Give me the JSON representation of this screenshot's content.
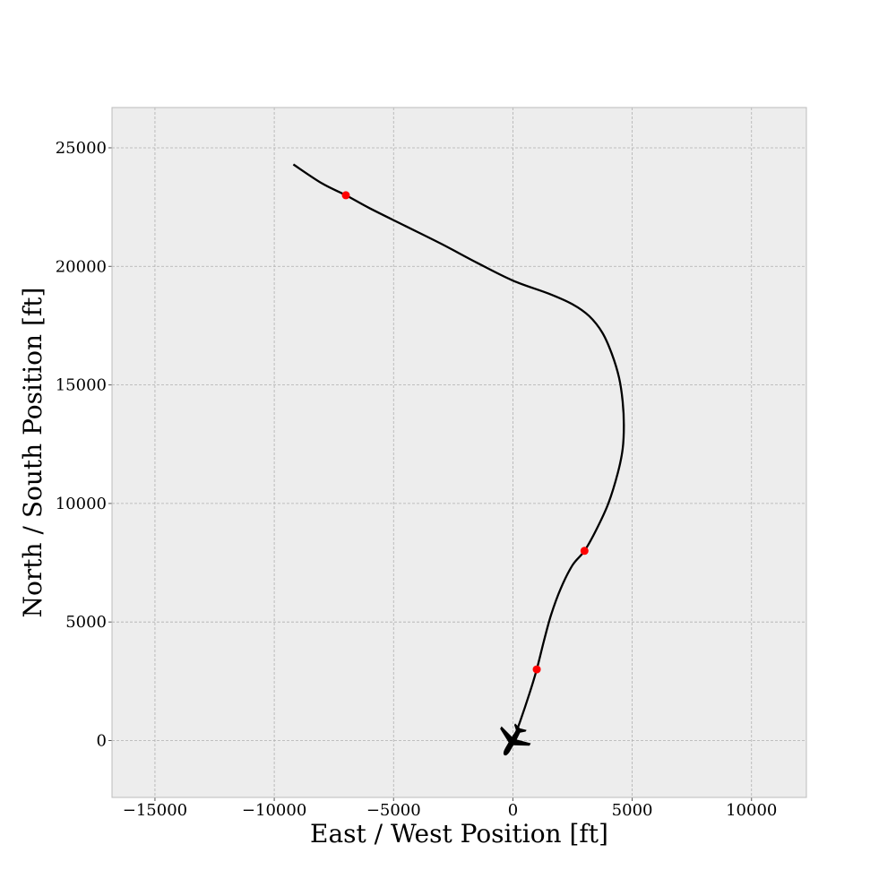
{
  "chart_data": {
    "type": "line",
    "title": "",
    "xlabel": "East / West Position [ft]",
    "ylabel": "North / South Position [ft]",
    "xlim": [
      -16800,
      12300
    ],
    "ylim": [
      -2400,
      26700
    ],
    "xticks": [
      -15000,
      -10000,
      -5000,
      0,
      5000,
      10000
    ],
    "yticks": [
      0,
      5000,
      10000,
      15000,
      20000,
      25000
    ],
    "xtick_labels": [
      "−15000",
      "−10000",
      "−5000",
      "0",
      "5000",
      "10000"
    ],
    "ytick_labels": [
      "0",
      "5000",
      "10000",
      "15000",
      "20000",
      "25000"
    ],
    "grid": true,
    "background": "#ededed",
    "series": [
      {
        "color": "#000000",
        "x": [
          0,
          300,
          700,
          1000,
          1300,
          1600,
          2000,
          2500,
          3000,
          3500,
          4000,
          4400,
          4600,
          4650,
          4600,
          4450,
          4150,
          3750,
          3200,
          2500,
          1500,
          0,
          -1500,
          -3000,
          -4500,
          -6000,
          -7000,
          -8000,
          -9200
        ],
        "y": [
          0,
          800,
          2000,
          3000,
          4200,
          5300,
          6400,
          7400,
          8000,
          8900,
          10000,
          11300,
          12300,
          13300,
          14300,
          15300,
          16300,
          17200,
          17900,
          18400,
          18850,
          19400,
          20150,
          20950,
          21700,
          22450,
          23000,
          23500,
          24300
        ]
      }
    ],
    "markers": {
      "color": "#ff0000",
      "points": [
        {
          "x": 1000,
          "y": 3000
        },
        {
          "x": 3000,
          "y": 8000
        },
        {
          "x": -7000,
          "y": 23000
        }
      ]
    },
    "aircraft_icon": {
      "name": "airplane-icon",
      "x": 0,
      "y": 0,
      "color": "#000000"
    }
  }
}
